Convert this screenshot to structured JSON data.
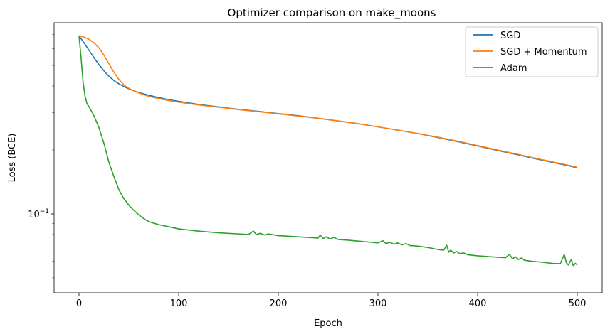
{
  "chart_data": {
    "type": "line",
    "title": "Optimizer comparison on make_moons",
    "xlabel": "Epoch",
    "ylabel": "Loss (BCE)",
    "xlim": [
      -25,
      525
    ],
    "ylim": [
      0.0425,
      0.795
    ],
    "yscale": "log",
    "grid": false,
    "legend_position": "top-right",
    "x_ticks": [
      0,
      100,
      200,
      300,
      400,
      500
    ],
    "y_ticks": [
      {
        "value": 0.1,
        "base": "10",
        "exponent": "−1"
      }
    ],
    "series": [
      {
        "name": "SGD",
        "color": "#1f77b4",
        "points": [
          [
            0,
            0.69
          ],
          [
            5,
            0.64
          ],
          [
            10,
            0.59
          ],
          [
            15,
            0.545
          ],
          [
            20,
            0.505
          ],
          [
            25,
            0.472
          ],
          [
            30,
            0.445
          ],
          [
            35,
            0.425
          ],
          [
            40,
            0.41
          ],
          [
            45,
            0.398
          ],
          [
            50,
            0.388
          ],
          [
            60,
            0.373
          ],
          [
            70,
            0.362
          ],
          [
            80,
            0.353
          ],
          [
            90,
            0.345
          ],
          [
            100,
            0.339
          ],
          [
            120,
            0.328
          ],
          [
            140,
            0.319
          ],
          [
            160,
            0.311
          ],
          [
            180,
            0.304
          ],
          [
            200,
            0.297
          ],
          [
            220,
            0.29
          ],
          [
            240,
            0.282
          ],
          [
            260,
            0.274
          ],
          [
            280,
            0.266
          ],
          [
            300,
            0.257
          ],
          [
            320,
            0.248
          ],
          [
            340,
            0.239
          ],
          [
            360,
            0.229
          ],
          [
            380,
            0.219
          ],
          [
            400,
            0.209
          ],
          [
            420,
            0.199
          ],
          [
            440,
            0.19
          ],
          [
            460,
            0.181
          ],
          [
            480,
            0.173
          ],
          [
            500,
            0.165
          ]
        ]
      },
      {
        "name": "SGD + Momentum",
        "color": "#ff7f0e",
        "points": [
          [
            0,
            0.69
          ],
          [
            5,
            0.68
          ],
          [
            10,
            0.665
          ],
          [
            15,
            0.64
          ],
          [
            20,
            0.605
          ],
          [
            25,
            0.56
          ],
          [
            30,
            0.51
          ],
          [
            35,
            0.465
          ],
          [
            40,
            0.43
          ],
          [
            45,
            0.405
          ],
          [
            50,
            0.39
          ],
          [
            55,
            0.38
          ],
          [
            60,
            0.371
          ],
          [
            70,
            0.358
          ],
          [
            80,
            0.349
          ],
          [
            90,
            0.342
          ],
          [
            100,
            0.336
          ],
          [
            120,
            0.326
          ],
          [
            140,
            0.318
          ],
          [
            160,
            0.31
          ],
          [
            180,
            0.303
          ],
          [
            200,
            0.296
          ],
          [
            220,
            0.289
          ],
          [
            240,
            0.282
          ],
          [
            260,
            0.274
          ],
          [
            280,
            0.266
          ],
          [
            300,
            0.257
          ],
          [
            320,
            0.248
          ],
          [
            340,
            0.239
          ],
          [
            360,
            0.23
          ],
          [
            380,
            0.22
          ],
          [
            400,
            0.21
          ],
          [
            420,
            0.2
          ],
          [
            440,
            0.191
          ],
          [
            460,
            0.182
          ],
          [
            480,
            0.174
          ],
          [
            500,
            0.166
          ]
        ]
      },
      {
        "name": "Adam",
        "color": "#2ca02c",
        "points": [
          [
            0,
            0.69
          ],
          [
            2,
            0.55
          ],
          [
            4,
            0.42
          ],
          [
            6,
            0.36
          ],
          [
            8,
            0.33
          ],
          [
            10,
            0.32
          ],
          [
            15,
            0.29
          ],
          [
            20,
            0.255
          ],
          [
            25,
            0.215
          ],
          [
            30,
            0.175
          ],
          [
            35,
            0.15
          ],
          [
            40,
            0.13
          ],
          [
            45,
            0.118
          ],
          [
            50,
            0.11
          ],
          [
            55,
            0.104
          ],
          [
            60,
            0.099
          ],
          [
            65,
            0.095
          ],
          [
            70,
            0.092
          ],
          [
            80,
            0.089
          ],
          [
            90,
            0.087
          ],
          [
            100,
            0.085
          ],
          [
            120,
            0.083
          ],
          [
            140,
            0.0815
          ],
          [
            160,
            0.0805
          ],
          [
            170,
            0.08
          ],
          [
            175,
            0.083
          ],
          [
            178,
            0.08
          ],
          [
            182,
            0.081
          ],
          [
            186,
            0.0795
          ],
          [
            190,
            0.0805
          ],
          [
            200,
            0.079
          ],
          [
            220,
            0.078
          ],
          [
            240,
            0.077
          ],
          [
            242,
            0.0795
          ],
          [
            245,
            0.0765
          ],
          [
            248,
            0.078
          ],
          [
            252,
            0.0762
          ],
          [
            256,
            0.0775
          ],
          [
            260,
            0.0758
          ],
          [
            270,
            0.0752
          ],
          [
            280,
            0.0745
          ],
          [
            290,
            0.0738
          ],
          [
            300,
            0.073
          ],
          [
            305,
            0.0748
          ],
          [
            308,
            0.0725
          ],
          [
            312,
            0.0735
          ],
          [
            316,
            0.072
          ],
          [
            320,
            0.073
          ],
          [
            324,
            0.0715
          ],
          [
            328,
            0.0725
          ],
          [
            332,
            0.071
          ],
          [
            340,
            0.0705
          ],
          [
            350,
            0.0695
          ],
          [
            360,
            0.068
          ],
          [
            366,
            0.0675
          ],
          [
            369,
            0.0712
          ],
          [
            371,
            0.066
          ],
          [
            373,
            0.0675
          ],
          [
            376,
            0.0655
          ],
          [
            379,
            0.0665
          ],
          [
            382,
            0.065
          ],
          [
            386,
            0.0655
          ],
          [
            390,
            0.0642
          ],
          [
            400,
            0.0635
          ],
          [
            410,
            0.063
          ],
          [
            420,
            0.0625
          ],
          [
            428,
            0.0622
          ],
          [
            432,
            0.0645
          ],
          [
            435,
            0.0615
          ],
          [
            438,
            0.0628
          ],
          [
            441,
            0.061
          ],
          [
            444,
            0.062
          ],
          [
            447,
            0.0605
          ],
          [
            455,
            0.0598
          ],
          [
            465,
            0.0592
          ],
          [
            475,
            0.0585
          ],
          [
            483,
            0.0583
          ],
          [
            487,
            0.0645
          ],
          [
            489,
            0.059
          ],
          [
            491,
            0.0575
          ],
          [
            494,
            0.061
          ],
          [
            496,
            0.0568
          ],
          [
            498,
            0.0585
          ],
          [
            500,
            0.0575
          ]
        ]
      }
    ]
  }
}
